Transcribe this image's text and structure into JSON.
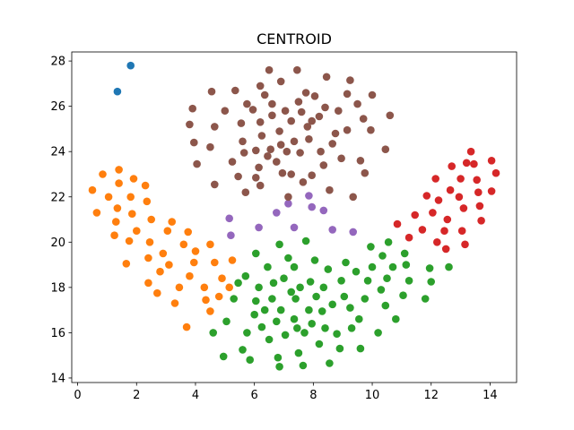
{
  "chart_data": {
    "type": "scatter",
    "title": "CENTROID",
    "xlabel": "",
    "ylabel": "",
    "xlim": [
      -0.2,
      14.9
    ],
    "ylim": [
      13.8,
      28.4
    ],
    "xticks": [
      0,
      2,
      4,
      6,
      8,
      10,
      12,
      14
    ],
    "yticks": [
      14,
      16,
      18,
      20,
      22,
      24,
      26,
      28
    ],
    "grid": false,
    "legend": "none",
    "series": [
      {
        "color": "#1f77b4",
        "points": [
          [
            1.8,
            27.8
          ],
          [
            1.35,
            26.65
          ]
        ]
      },
      {
        "color": "#ff7f0e",
        "points": [
          [
            0.5,
            22.3
          ],
          [
            0.65,
            21.3
          ],
          [
            0.85,
            23.0
          ],
          [
            1.05,
            22.0
          ],
          [
            1.25,
            20.3
          ],
          [
            1.3,
            20.9
          ],
          [
            1.35,
            21.5
          ],
          [
            1.4,
            22.6
          ],
          [
            1.4,
            23.2
          ],
          [
            1.65,
            19.05
          ],
          [
            1.75,
            20.05
          ],
          [
            1.8,
            22.0
          ],
          [
            1.85,
            21.25
          ],
          [
            1.9,
            22.8
          ],
          [
            2.0,
            20.5
          ],
          [
            2.3,
            22.5
          ],
          [
            2.35,
            21.8
          ],
          [
            2.4,
            19.3
          ],
          [
            2.45,
            20.0
          ],
          [
            2.5,
            21.0
          ],
          [
            2.4,
            18.2
          ],
          [
            2.7,
            17.75
          ],
          [
            2.8,
            18.7
          ],
          [
            2.9,
            19.5
          ],
          [
            3.05,
            20.5
          ],
          [
            3.1,
            19.0
          ],
          [
            3.2,
            20.9
          ],
          [
            3.3,
            17.3
          ],
          [
            3.45,
            18.0
          ],
          [
            3.6,
            19.9
          ],
          [
            3.7,
            16.25
          ],
          [
            3.75,
            20.45
          ],
          [
            3.8,
            18.5
          ],
          [
            3.95,
            19.1
          ],
          [
            4.0,
            19.6
          ],
          [
            4.3,
            18.0
          ],
          [
            4.35,
            17.45
          ],
          [
            4.5,
            16.95
          ],
          [
            4.5,
            19.9
          ],
          [
            4.65,
            19.1
          ],
          [
            4.8,
            17.6
          ],
          [
            4.9,
            18.4
          ],
          [
            5.15,
            18.0
          ],
          [
            5.25,
            19.2
          ]
        ]
      },
      {
        "color": "#2ca02c",
        "points": [
          [
            4.6,
            16.0
          ],
          [
            4.95,
            14.95
          ],
          [
            5.05,
            16.5
          ],
          [
            5.3,
            17.5
          ],
          [
            5.45,
            18.2
          ],
          [
            5.6,
            15.25
          ],
          [
            5.7,
            18.5
          ],
          [
            5.75,
            16.0
          ],
          [
            5.85,
            14.8
          ],
          [
            6.0,
            16.8
          ],
          [
            6.05,
            17.4
          ],
          [
            6.05,
            19.5
          ],
          [
            6.15,
            18.0
          ],
          [
            6.25,
            16.25
          ],
          [
            6.35,
            17.0
          ],
          [
            6.45,
            18.9
          ],
          [
            6.5,
            15.7
          ],
          [
            6.6,
            17.5
          ],
          [
            6.65,
            18.2
          ],
          [
            6.75,
            16.5
          ],
          [
            6.8,
            14.9
          ],
          [
            6.85,
            14.5
          ],
          [
            6.85,
            19.9
          ],
          [
            6.9,
            17.0
          ],
          [
            7.0,
            18.4
          ],
          [
            7.05,
            15.9
          ],
          [
            7.15,
            19.3
          ],
          [
            7.25,
            17.8
          ],
          [
            7.35,
            16.6
          ],
          [
            7.4,
            17.5
          ],
          [
            7.35,
            18.9
          ],
          [
            7.45,
            16.2
          ],
          [
            7.5,
            15.1
          ],
          [
            7.55,
            18.0
          ],
          [
            7.65,
            14.55
          ],
          [
            7.7,
            16.0
          ],
          [
            7.75,
            20.05
          ],
          [
            7.85,
            17.0
          ],
          [
            7.9,
            18.25
          ],
          [
            7.95,
            16.4
          ],
          [
            8.05,
            19.2
          ],
          [
            8.1,
            17.6
          ],
          [
            8.2,
            15.5
          ],
          [
            8.3,
            16.95
          ],
          [
            8.35,
            18.0
          ],
          [
            8.4,
            16.2
          ],
          [
            8.5,
            18.8
          ],
          [
            8.55,
            14.65
          ],
          [
            8.65,
            17.25
          ],
          [
            8.8,
            15.95
          ],
          [
            8.9,
            15.3
          ],
          [
            8.95,
            18.3
          ],
          [
            9.05,
            17.6
          ],
          [
            9.1,
            19.1
          ],
          [
            9.25,
            17.1
          ],
          [
            9.3,
            16.2
          ],
          [
            9.45,
            18.7
          ],
          [
            9.55,
            16.6
          ],
          [
            9.6,
            15.3
          ],
          [
            9.75,
            17.5
          ],
          [
            9.85,
            18.3
          ],
          [
            9.95,
            19.8
          ],
          [
            10.0,
            18.9
          ],
          [
            10.2,
            16.0
          ],
          [
            10.3,
            17.9
          ],
          [
            10.35,
            19.4
          ],
          [
            10.45,
            17.2
          ],
          [
            10.5,
            18.4
          ],
          [
            10.55,
            20.0
          ],
          [
            10.7,
            18.9
          ],
          [
            10.8,
            16.6
          ],
          [
            11.05,
            17.65
          ],
          [
            11.1,
            19.5
          ],
          [
            11.15,
            19.0
          ],
          [
            11.25,
            18.3
          ],
          [
            11.8,
            17.5
          ],
          [
            11.95,
            18.85
          ],
          [
            12.0,
            18.25
          ],
          [
            12.6,
            18.9
          ]
        ]
      },
      {
        "color": "#d62728",
        "points": [
          [
            10.85,
            20.8
          ],
          [
            11.25,
            20.2
          ],
          [
            11.45,
            21.2
          ],
          [
            11.7,
            20.55
          ],
          [
            11.85,
            22.05
          ],
          [
            12.05,
            21.3
          ],
          [
            12.15,
            22.8
          ],
          [
            12.2,
            20.0
          ],
          [
            12.25,
            21.85
          ],
          [
            12.45,
            20.5
          ],
          [
            12.5,
            19.7
          ],
          [
            12.55,
            21.0
          ],
          [
            12.65,
            22.3
          ],
          [
            12.7,
            23.35
          ],
          [
            12.95,
            22.0
          ],
          [
            13.0,
            22.8
          ],
          [
            13.05,
            20.5
          ],
          [
            13.1,
            21.5
          ],
          [
            13.15,
            19.9
          ],
          [
            13.2,
            23.5
          ],
          [
            13.35,
            24.0
          ],
          [
            13.45,
            23.45
          ],
          [
            13.55,
            22.75
          ],
          [
            13.6,
            22.2
          ],
          [
            13.65,
            21.6
          ],
          [
            13.7,
            20.95
          ],
          [
            14.05,
            23.6
          ],
          [
            14.05,
            22.25
          ],
          [
            14.2,
            23.05
          ]
        ]
      },
      {
        "color": "#9467bd",
        "points": [
          [
            5.15,
            21.05
          ],
          [
            5.2,
            20.3
          ],
          [
            6.15,
            20.65
          ],
          [
            6.75,
            21.3
          ],
          [
            7.15,
            21.7
          ],
          [
            7.35,
            20.65
          ],
          [
            7.85,
            22.05
          ],
          [
            7.95,
            21.55
          ],
          [
            8.35,
            21.4
          ],
          [
            8.65,
            20.55
          ],
          [
            9.35,
            20.45
          ]
        ]
      },
      {
        "color": "#8c564b",
        "points": [
          [
            3.8,
            25.2
          ],
          [
            3.9,
            25.9
          ],
          [
            3.95,
            24.4
          ],
          [
            4.05,
            23.45
          ],
          [
            4.5,
            24.2
          ],
          [
            4.55,
            26.65
          ],
          [
            4.65,
            25.1
          ],
          [
            4.65,
            22.55
          ],
          [
            5.0,
            25.8
          ],
          [
            5.25,
            23.55
          ],
          [
            5.35,
            26.7
          ],
          [
            5.45,
            22.9
          ],
          [
            5.55,
            25.25
          ],
          [
            5.6,
            24.45
          ],
          [
            5.65,
            23.95
          ],
          [
            5.7,
            22.2
          ],
          [
            5.75,
            26.1
          ],
          [
            5.95,
            25.85
          ],
          [
            6.05,
            24.05
          ],
          [
            6.05,
            22.85
          ],
          [
            6.15,
            23.3
          ],
          [
            6.2,
            26.9
          ],
          [
            6.2,
            25.3
          ],
          [
            6.2,
            22.5
          ],
          [
            6.25,
            24.7
          ],
          [
            6.35,
            26.5
          ],
          [
            6.45,
            23.8
          ],
          [
            6.5,
            27.6
          ],
          [
            6.55,
            24.1
          ],
          [
            6.6,
            26.1
          ],
          [
            6.6,
            25.6
          ],
          [
            6.75,
            23.55
          ],
          [
            6.85,
            24.9
          ],
          [
            6.9,
            24.3
          ],
          [
            6.9,
            27.1
          ],
          [
            6.95,
            23.05
          ],
          [
            7.05,
            25.8
          ],
          [
            7.1,
            24.0
          ],
          [
            7.15,
            22.0
          ],
          [
            7.25,
            23.0
          ],
          [
            7.25,
            25.35
          ],
          [
            7.35,
            24.45
          ],
          [
            7.45,
            27.6
          ],
          [
            7.5,
            26.2
          ],
          [
            7.55,
            23.95
          ],
          [
            7.6,
            25.75
          ],
          [
            7.65,
            22.65
          ],
          [
            7.75,
            26.6
          ],
          [
            7.8,
            25.1
          ],
          [
            7.85,
            24.55
          ],
          [
            7.95,
            25.35
          ],
          [
            7.95,
            22.95
          ],
          [
            8.05,
            26.45
          ],
          [
            8.2,
            25.55
          ],
          [
            8.25,
            24.0
          ],
          [
            8.35,
            23.4
          ],
          [
            8.4,
            25.95
          ],
          [
            8.45,
            27.3
          ],
          [
            8.55,
            22.3
          ],
          [
            8.65,
            24.35
          ],
          [
            8.75,
            24.8
          ],
          [
            8.85,
            25.8
          ],
          [
            8.95,
            23.7
          ],
          [
            9.15,
            26.55
          ],
          [
            9.15,
            24.95
          ],
          [
            9.25,
            27.15
          ],
          [
            9.35,
            22.0
          ],
          [
            9.5,
            26.1
          ],
          [
            9.6,
            23.6
          ],
          [
            9.7,
            25.45
          ],
          [
            9.75,
            23.05
          ],
          [
            9.95,
            24.95
          ],
          [
            10.0,
            26.5
          ],
          [
            10.45,
            24.1
          ],
          [
            10.6,
            25.6
          ]
        ]
      }
    ]
  }
}
